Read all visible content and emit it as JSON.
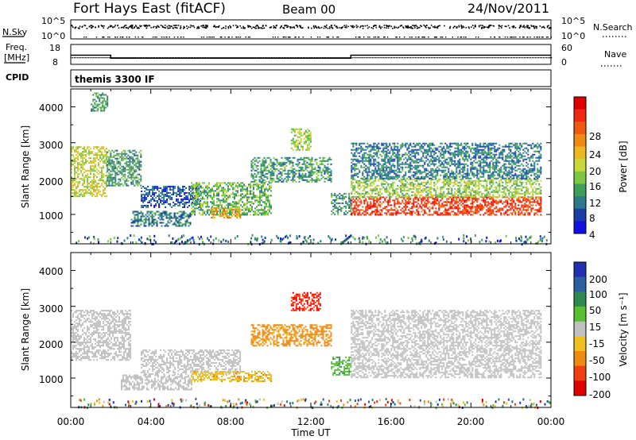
{
  "header": {
    "station": "Fort Hays East (fitACF)",
    "beam": "Beam 00",
    "date": "24/Nov/2011"
  },
  "control": {
    "nsky_label": "N.Sky",
    "nsearch_label": "N.Search",
    "nsky_ticks": [
      "10^5",
      "10^0"
    ],
    "nsearch_ticks": [
      "10^5",
      "10^0"
    ],
    "freq_label": "Freq.",
    "freq_unit": "[MHz]",
    "freq_ticks": [
      "18",
      "8"
    ],
    "nave_label": "Nave",
    "nave_ticks": [
      "60",
      "0"
    ],
    "cpid_label": "CPID",
    "cpid_value": "themis 3300 IF"
  },
  "power_panel": {
    "ylabel": "Slant Range [km]",
    "yticks": [
      "1000",
      "2000",
      "3000",
      "4000"
    ],
    "colorbar_label": "Power [dB]",
    "colorbar_ticks": [
      "4",
      "8",
      "12",
      "16",
      "20",
      "24",
      "28"
    ],
    "colors": [
      "#1010e0",
      "#1a3ea8",
      "#2e7a8c",
      "#3f9e5a",
      "#7cc840",
      "#c8d838",
      "#f0b820",
      "#f08a10",
      "#f05a10",
      "#f02a10",
      "#e00000"
    ]
  },
  "velocity_panel": {
    "ylabel": "Slant Range [km]",
    "yticks": [
      "1000",
      "2000",
      "3000",
      "4000"
    ],
    "colorbar_label": "Velocity [m s⁻¹]",
    "colorbar_ticks": [
      "200",
      "100",
      "50",
      "15",
      "-15",
      "-50",
      "-100",
      "-200"
    ],
    "colors": [
      "#2030b0",
      "#2a60a0",
      "#2e8a50",
      "#56c030",
      "#c0c0c0",
      "#f0c020",
      "#f08a10",
      "#f04010",
      "#e00000"
    ]
  },
  "xaxis": {
    "label": "Time UT",
    "ticks": [
      "00:00",
      "04:00",
      "08:00",
      "12:00",
      "16:00",
      "20:00",
      "00:00"
    ]
  },
  "chart_data": [
    {
      "type": "heatmap",
      "title": "Power [dB]",
      "xlabel": "Time UT",
      "ylabel": "Slant Range [km]",
      "xlim": [
        0,
        24
      ],
      "ylim": [
        180,
        4500
      ],
      "colorbar_range": [
        3,
        30
      ],
      "regions": [
        {
          "t": [
            0.0,
            1.8
          ],
          "r": [
            1500,
            2900
          ],
          "level": 18
        },
        {
          "t": [
            1.8,
            3.5
          ],
          "r": [
            1800,
            2800
          ],
          "level": 12
        },
        {
          "t": [
            1.0,
            1.8
          ],
          "r": [
            3900,
            4400
          ],
          "level": 12
        },
        {
          "t": [
            3.5,
            6.5
          ],
          "r": [
            1200,
            1800
          ],
          "level": 8
        },
        {
          "t": [
            3.0,
            6.0
          ],
          "r": [
            700,
            1100
          ],
          "level": 10
        },
        {
          "t": [
            6.0,
            10.0
          ],
          "r": [
            1000,
            1900
          ],
          "level": 14
        },
        {
          "t": [
            7.0,
            8.5
          ],
          "r": [
            900,
            1200
          ],
          "level": 22
        },
        {
          "t": [
            9.0,
            13.0
          ],
          "r": [
            1900,
            2600
          ],
          "level": 12
        },
        {
          "t": [
            11.0,
            12.0
          ],
          "r": [
            2800,
            3400
          ],
          "level": 16
        },
        {
          "t": [
            13.0,
            14.0
          ],
          "r": [
            1000,
            1600
          ],
          "level": 12
        },
        {
          "t": [
            14.0,
            23.5
          ],
          "r": [
            1000,
            1500
          ],
          "level": 28
        },
        {
          "t": [
            14.0,
            23.5
          ],
          "r": [
            1500,
            2000
          ],
          "level": 16
        },
        {
          "t": [
            14.0,
            23.5
          ],
          "r": [
            2000,
            3000
          ],
          "level": 10
        }
      ]
    },
    {
      "type": "heatmap",
      "title": "Velocity [m s-1]",
      "xlabel": "Time UT",
      "ylabel": "Slant Range [km]",
      "xlim": [
        0,
        24
      ],
      "ylim": [
        180,
        4500
      ],
      "colorbar_range": [
        -250,
        250
      ],
      "regions": [
        {
          "t": [
            0.0,
            3.0
          ],
          "r": [
            1500,
            2900
          ],
          "v": 0
        },
        {
          "t": [
            2.5,
            6.0
          ],
          "r": [
            700,
            1100
          ],
          "v": 0
        },
        {
          "t": [
            3.5,
            8.5
          ],
          "r": [
            1100,
            1800
          ],
          "v": 0
        },
        {
          "t": [
            6.0,
            10.0
          ],
          "r": [
            900,
            1200
          ],
          "v": -40
        },
        {
          "t": [
            9.0,
            13.0
          ],
          "r": [
            1900,
            2500
          ],
          "v": -60
        },
        {
          "t": [
            11.0,
            12.5
          ],
          "r": [
            2900,
            3400
          ],
          "v": -200
        },
        {
          "t": [
            13.0,
            14.0
          ],
          "r": [
            1100,
            1600
          ],
          "v": 40
        },
        {
          "t": [
            14.0,
            23.5
          ],
          "r": [
            1000,
            2900
          ],
          "v": 0
        }
      ]
    }
  ]
}
